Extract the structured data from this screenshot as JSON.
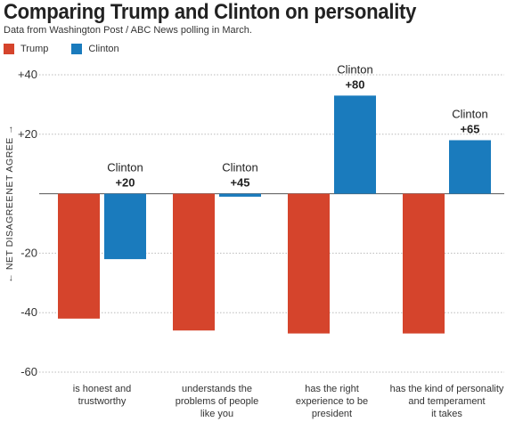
{
  "header": {
    "title": "Comparing Trump and Clinton on personality",
    "subtitle": "Data from Washington Post / ABC News polling in March."
  },
  "legend": [
    {
      "label": "Trump",
      "color": "#d5442c"
    },
    {
      "label": "Clinton",
      "color": "#1a7bbd"
    }
  ],
  "axis": {
    "agree_label": "NET AGREE →",
    "disagree_label": "← NET DISAGREE"
  },
  "chart_data": {
    "type": "bar",
    "title": "Comparing Trump and Clinton on personality",
    "subtitle": "Data from Washington Post / ABC News polling in March.",
    "categories": [
      [
        "is honest and",
        "trustworthy"
      ],
      [
        "understands the",
        "problems of people",
        "like you"
      ],
      [
        "has the right",
        "experience to be",
        "president"
      ],
      [
        "has the kind of personality",
        "and temperament",
        "it takes"
      ]
    ],
    "series": [
      {
        "name": "Trump",
        "color": "#d5442c",
        "values": [
          -42,
          -46,
          -47,
          -47
        ]
      },
      {
        "name": "Clinton",
        "color": "#1a7bbd",
        "values": [
          -22,
          -1,
          33,
          18
        ]
      }
    ],
    "annotations": [
      {
        "name": "Clinton",
        "value": "+20"
      },
      {
        "name": "Clinton",
        "value": "+45"
      },
      {
        "name": "Clinton",
        "value": "+80"
      },
      {
        "name": "Clinton",
        "value": "+65"
      }
    ],
    "ylim": [
      -60,
      40
    ],
    "yticks": [
      40,
      20,
      0,
      -20,
      -40,
      -60
    ],
    "ytick_labels": [
      "+40",
      "+20",
      "",
      "-20",
      "-40",
      "-60"
    ],
    "grid": true,
    "legend_position": "top-left"
  }
}
